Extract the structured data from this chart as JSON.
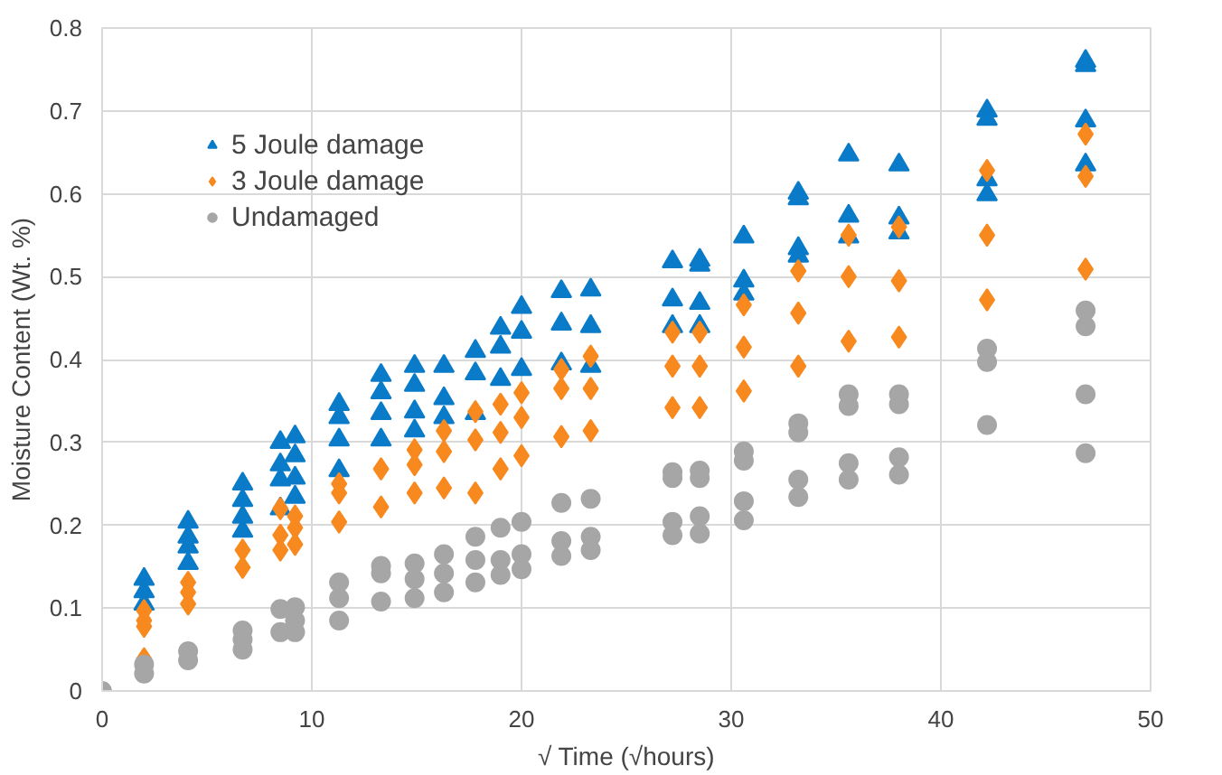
{
  "chart_data": {
    "type": "scatter",
    "xlabel": "√ Time (√hours)",
    "ylabel": "Moisture Content (Wt. %)",
    "xlim": [
      0,
      50
    ],
    "ylim": [
      0,
      0.8
    ],
    "xticks": [
      0,
      10,
      20,
      30,
      40,
      50
    ],
    "yticks": [
      0,
      0.1,
      0.2,
      0.3,
      0.4,
      0.5,
      0.6,
      0.7,
      0.8
    ],
    "grid": true,
    "legend": "top left",
    "series": [
      {
        "name": "5 Joule damage",
        "color": "#0a7bc8",
        "marker": "triangle",
        "x": [
          2,
          2,
          2,
          4.1,
          4.1,
          4.1,
          4.1,
          6.7,
          6.7,
          6.7,
          6.7,
          8.5,
          8.5,
          8.5,
          8.5,
          9.2,
          9.2,
          9.2,
          9.2,
          11.3,
          11.3,
          11.3,
          11.3,
          13.3,
          13.3,
          13.3,
          13.3,
          14.9,
          14.9,
          14.9,
          14.9,
          16.3,
          16.3,
          16.3,
          17.8,
          17.8,
          17.8,
          19,
          19,
          19,
          20,
          20,
          20,
          21.9,
          21.9,
          21.9,
          23.3,
          23.3,
          23.3,
          27.2,
          27.2,
          27.2,
          28.5,
          28.5,
          28.5,
          28.5,
          30.6,
          30.6,
          30.6,
          33.2,
          33.2,
          33.2,
          33.2,
          35.6,
          35.6,
          35.6,
          38,
          38,
          38,
          42.2,
          42.2,
          42.2,
          42.2,
          46.9,
          46.9,
          46.9,
          46.9
        ],
        "values": [
          0.135,
          0.12,
          0.105,
          0.204,
          0.186,
          0.174,
          0.154,
          0.25,
          0.23,
          0.21,
          0.193,
          0.3,
          0.273,
          0.255,
          0.22,
          0.307,
          0.284,
          0.257,
          0.234,
          0.346,
          0.33,
          0.303,
          0.266,
          0.381,
          0.36,
          0.335,
          0.303,
          0.392,
          0.369,
          0.337,
          0.314,
          0.392,
          0.353,
          0.33,
          0.41,
          0.383,
          0.335,
          0.438,
          0.415,
          0.376,
          0.463,
          0.433,
          0.388,
          0.482,
          0.443,
          0.395,
          0.484,
          0.44,
          0.392,
          0.518,
          0.472,
          0.44,
          0.52,
          0.514,
          0.468,
          0.44,
          0.548,
          0.495,
          0.479,
          0.601,
          0.594,
          0.534,
          0.525,
          0.647,
          0.573,
          0.548,
          0.635,
          0.571,
          0.553,
          0.7,
          0.69,
          0.617,
          0.599,
          0.76,
          0.755,
          0.688,
          0.635
        ]
      },
      {
        "name": "3 Joule damage",
        "color": "#f7891f",
        "marker": "diamond",
        "x": [
          2,
          2,
          2,
          2,
          4.1,
          4.1,
          4.1,
          6.7,
          6.7,
          8.5,
          8.5,
          8.5,
          9.2,
          9.2,
          9.2,
          11.3,
          11.3,
          11.3,
          13.3,
          13.3,
          14.9,
          14.9,
          14.9,
          16.3,
          16.3,
          16.3,
          17.8,
          17.8,
          17.8,
          19,
          19,
          19,
          20,
          20,
          20,
          21.9,
          21.9,
          21.9,
          23.3,
          23.3,
          23.3,
          27.2,
          27.2,
          27.2,
          28.5,
          28.5,
          28.5,
          30.6,
          30.6,
          30.6,
          33.2,
          33.2,
          33.2,
          35.6,
          35.6,
          35.6,
          38,
          38,
          38,
          42.2,
          42.2,
          42.2,
          46.9,
          46.9,
          46.9
        ],
        "values": [
          0.097,
          0.085,
          0.078,
          0.039,
          0.131,
          0.119,
          0.105,
          0.17,
          0.149,
          0.22,
          0.188,
          0.17,
          0.211,
          0.197,
          0.177,
          0.25,
          0.239,
          0.204,
          0.268,
          0.222,
          0.291,
          0.273,
          0.239,
          0.314,
          0.289,
          0.245,
          0.337,
          0.303,
          0.239,
          0.346,
          0.312,
          0.268,
          0.36,
          0.33,
          0.284,
          0.388,
          0.365,
          0.307,
          0.404,
          0.365,
          0.314,
          0.433,
          0.392,
          0.342,
          0.433,
          0.392,
          0.342,
          0.466,
          0.415,
          0.362,
          0.507,
          0.456,
          0.392,
          0.55,
          0.5,
          0.422,
          0.56,
          0.495,
          0.427,
          0.628,
          0.55,
          0.472,
          0.672,
          0.621,
          0.509
        ]
      },
      {
        "name": "Undamaged",
        "color": "#a6a6a6",
        "marker": "circle",
        "x": [
          0,
          2,
          2,
          4.1,
          4.1,
          6.7,
          6.7,
          6.7,
          8.5,
          8.5,
          9.2,
          9.2,
          9.2,
          11.3,
          11.3,
          11.3,
          13.3,
          13.3,
          13.3,
          14.9,
          14.9,
          14.9,
          16.3,
          16.3,
          16.3,
          17.8,
          17.8,
          17.8,
          19,
          19,
          19,
          20,
          20,
          20,
          21.9,
          21.9,
          21.9,
          23.3,
          23.3,
          23.3,
          27.2,
          27.2,
          27.2,
          27.2,
          28.5,
          28.5,
          28.5,
          28.5,
          30.6,
          30.6,
          30.6,
          30.6,
          33.2,
          33.2,
          33.2,
          33.2,
          35.6,
          35.6,
          35.6,
          35.6,
          38,
          38,
          38,
          38,
          42.2,
          42.2,
          42.2,
          46.9,
          46.9,
          46.9,
          46.9
        ],
        "values": [
          0,
          0.032,
          0.021,
          0.048,
          0.037,
          0.073,
          0.062,
          0.05,
          0.099,
          0.071,
          0.101,
          0.085,
          0.071,
          0.131,
          0.112,
          0.085,
          0.151,
          0.142,
          0.108,
          0.154,
          0.135,
          0.112,
          0.165,
          0.142,
          0.119,
          0.186,
          0.158,
          0.131,
          0.197,
          0.158,
          0.14,
          0.204,
          0.165,
          0.147,
          0.227,
          0.181,
          0.163,
          0.232,
          0.186,
          0.17,
          0.264,
          0.257,
          0.204,
          0.188,
          0.266,
          0.257,
          0.211,
          0.19,
          0.289,
          0.278,
          0.229,
          0.206,
          0.323,
          0.312,
          0.255,
          0.234,
          0.358,
          0.344,
          0.275,
          0.255,
          0.358,
          0.346,
          0.282,
          0.261,
          0.413,
          0.397,
          0.321,
          0.459,
          0.44,
          0.358,
          0.287
        ]
      }
    ]
  }
}
